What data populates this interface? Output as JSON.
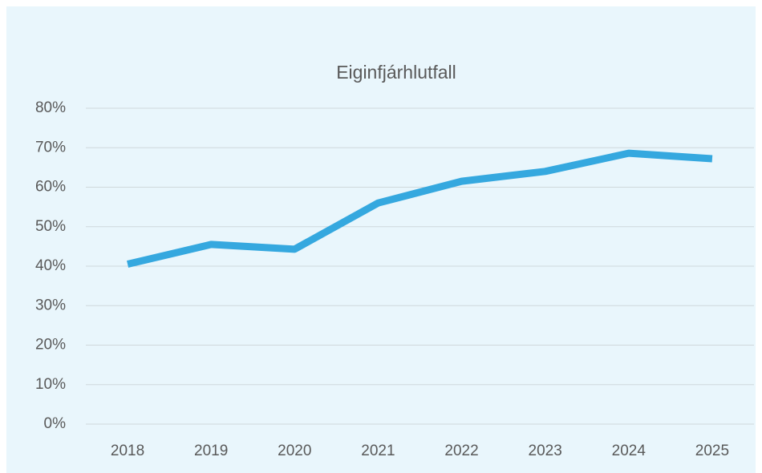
{
  "chart_data": {
    "type": "line",
    "title": "Eiginfjárhlutfall",
    "categories": [
      "2018",
      "2019",
      "2020",
      "2021",
      "2022",
      "2023",
      "2024",
      "2025"
    ],
    "series": [
      {
        "color": "#35a8df",
        "values": [
          40.5,
          45.5,
          44.3,
          56.0,
          61.5,
          64.0,
          68.6,
          67.2
        ]
      }
    ],
    "ylim": [
      0,
      80
    ],
    "yticks": [
      {
        "value": 0,
        "label": "0%"
      },
      {
        "value": 10,
        "label": "10%"
      },
      {
        "value": 20,
        "label": "20%"
      },
      {
        "value": 30,
        "label": "30%"
      },
      {
        "value": 40,
        "label": "40%"
      },
      {
        "value": 50,
        "label": "50%"
      },
      {
        "value": 60,
        "label": "60%"
      },
      {
        "value": 70,
        "label": "70%"
      },
      {
        "value": 80,
        "label": "80%"
      }
    ],
    "grid": true
  }
}
